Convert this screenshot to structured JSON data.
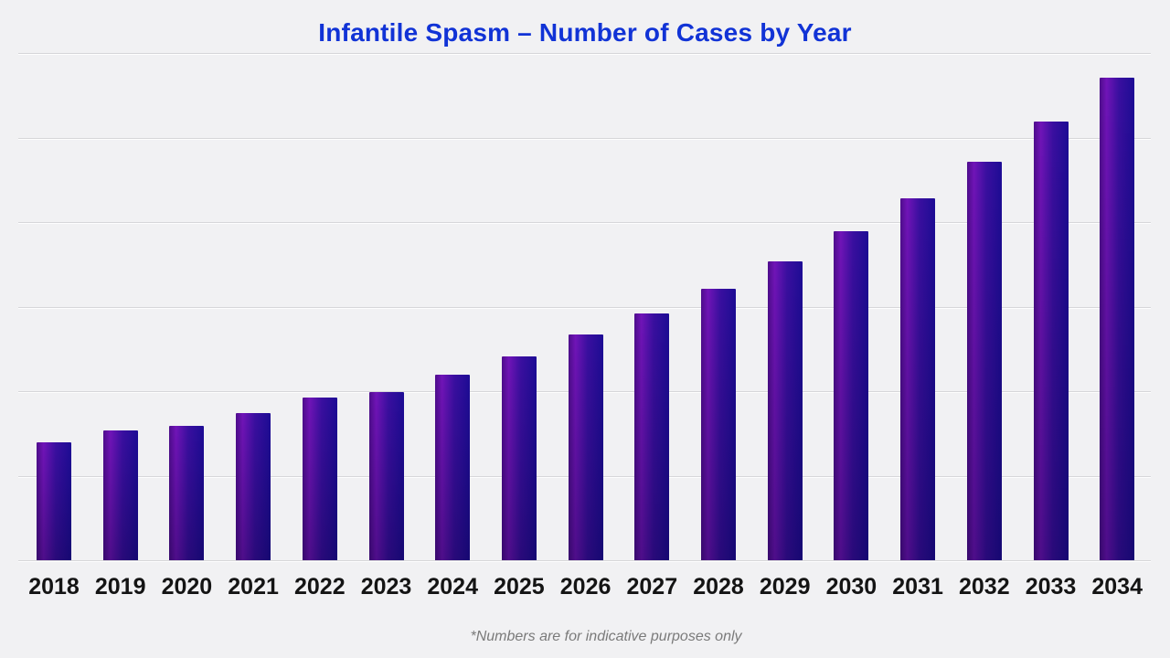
{
  "footnote": "*Numbers are for indicative purposes only",
  "colors": {
    "background": "#f1f1f3",
    "title_blue": "#1133d6",
    "gridline": "#d6d6d9",
    "axis_label": "#141414",
    "footnote_gray": "#7a7a7a",
    "bar_gradient_left": "#4e0d8c",
    "bar_gradient_highlight": "#7114b8",
    "bar_gradient_mid": "#3a0fa0",
    "bar_gradient_right": "#1d0c95",
    "bar_bottom_shade": "rgba(5,0,40,0.32)"
  },
  "chart_data": {
    "type": "bar",
    "title": "Infantile Spasm – Number of Cases by Year",
    "categories": [
      "2018",
      "2019",
      "2020",
      "2021",
      "2022",
      "2023",
      "2024",
      "2025",
      "2026",
      "2027",
      "2028",
      "2029",
      "2030",
      "2031",
      "2032",
      "2033",
      "2034"
    ],
    "values": [
      139,
      153,
      159,
      174,
      192,
      199,
      219,
      241,
      267,
      292,
      321,
      353,
      389,
      428,
      471,
      519,
      571
    ],
    "xlabel": "",
    "ylabel": "",
    "ylim": [
      0,
      600
    ],
    "gridline_interval": 100,
    "grid": true,
    "legend": false,
    "yaxis_labels_shown": false,
    "value_labels_shown": false,
    "footnote": "*Numbers are for indicative purposes only"
  }
}
